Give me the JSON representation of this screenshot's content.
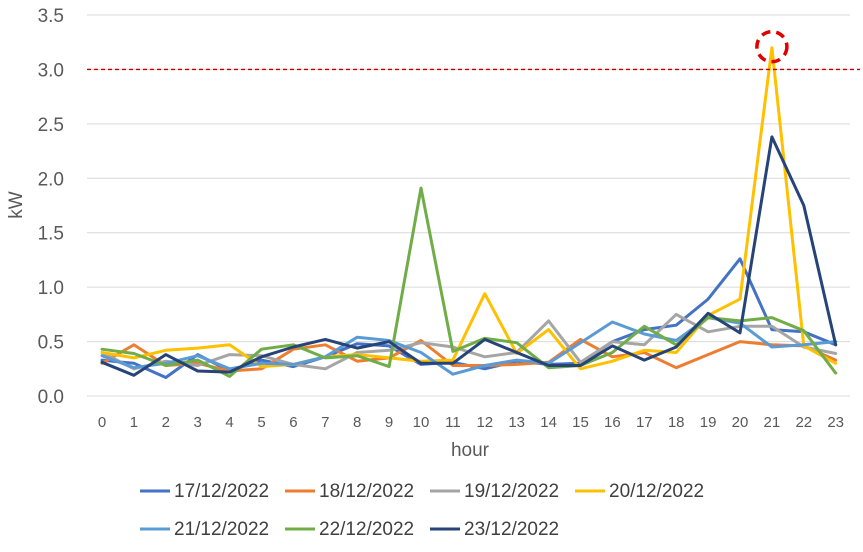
{
  "chart_data": {
    "type": "line",
    "xlabel": "hour",
    "ylabel": "kW",
    "ylim": [
      0,
      3.5
    ],
    "yticks": [
      "0.0",
      "0.5",
      "1.0",
      "1.5",
      "2.0",
      "2.5",
      "3.0",
      "3.5"
    ],
    "x": [
      "0",
      "1",
      "2",
      "3",
      "4",
      "5",
      "6",
      "7",
      "8",
      "9",
      "10",
      "11",
      "12",
      "13",
      "14",
      "15",
      "16",
      "17",
      "18",
      "19",
      "20",
      "21",
      "22",
      "23"
    ],
    "grid": "horizontal",
    "legend_position": "bottom",
    "threshold": {
      "value": 3.0,
      "color": "#c00000",
      "style": "dashed"
    },
    "highlight": {
      "x": "21",
      "y": 3.2,
      "color": "#e00000",
      "shape": "dashed-circle"
    },
    "series": [
      {
        "name": "17/12/2022",
        "color": "#4472c4",
        "values": [
          0.33,
          0.3,
          0.17,
          0.38,
          0.23,
          0.33,
          0.27,
          0.36,
          0.48,
          0.46,
          0.29,
          0.31,
          0.25,
          0.32,
          0.29,
          0.3,
          0.5,
          0.61,
          0.65,
          0.89,
          1.26,
          0.61,
          0.59,
          0.47
        ]
      },
      {
        "name": "18/12/2022",
        "color": "#ed7d31",
        "values": [
          0.3,
          0.47,
          0.28,
          0.3,
          0.23,
          0.25,
          0.43,
          0.47,
          0.32,
          0.35,
          0.51,
          0.28,
          0.28,
          0.29,
          0.31,
          0.52,
          0.36,
          0.4,
          0.26,
          0.38,
          0.5,
          0.47,
          0.46,
          0.33
        ]
      },
      {
        "name": "19/12/2022",
        "color": "#a5a5a5",
        "values": [
          0.4,
          0.25,
          0.32,
          0.28,
          0.38,
          0.37,
          0.29,
          0.25,
          0.4,
          0.42,
          0.49,
          0.45,
          0.36,
          0.4,
          0.69,
          0.31,
          0.5,
          0.47,
          0.75,
          0.59,
          0.64,
          0.64,
          0.45,
          0.39
        ]
      },
      {
        "name": "20/12/2022",
        "color": "#ffc000",
        "values": [
          0.4,
          0.35,
          0.42,
          0.44,
          0.47,
          0.27,
          0.29,
          0.36,
          0.38,
          0.35,
          0.32,
          0.33,
          0.94,
          0.39,
          0.61,
          0.25,
          0.32,
          0.42,
          0.4,
          0.74,
          0.89,
          3.2,
          0.46,
          0.3
        ]
      },
      {
        "name": "21/12/2022",
        "color": "#5b9bd5",
        "values": [
          0.37,
          0.26,
          0.3,
          0.37,
          0.25,
          0.3,
          0.29,
          0.36,
          0.54,
          0.51,
          0.4,
          0.2,
          0.28,
          0.33,
          0.3,
          0.49,
          0.68,
          0.57,
          0.51,
          0.72,
          0.67,
          0.45,
          0.47,
          0.5
        ]
      },
      {
        "name": "22/12/2022",
        "color": "#70ad47",
        "values": [
          0.43,
          0.39,
          0.28,
          0.33,
          0.18,
          0.43,
          0.47,
          0.35,
          0.37,
          0.27,
          1.91,
          0.41,
          0.53,
          0.49,
          0.26,
          0.28,
          0.4,
          0.64,
          0.47,
          0.72,
          0.69,
          0.72,
          0.6,
          0.21
        ]
      },
      {
        "name": "23/12/2022",
        "color": "#264478",
        "values": [
          0.31,
          0.19,
          0.38,
          0.23,
          0.22,
          0.36,
          0.45,
          0.52,
          0.44,
          0.5,
          0.3,
          0.3,
          0.52,
          0.4,
          0.28,
          0.28,
          0.46,
          0.33,
          0.45,
          0.76,
          0.58,
          2.38,
          1.75,
          0.47
        ]
      }
    ]
  }
}
